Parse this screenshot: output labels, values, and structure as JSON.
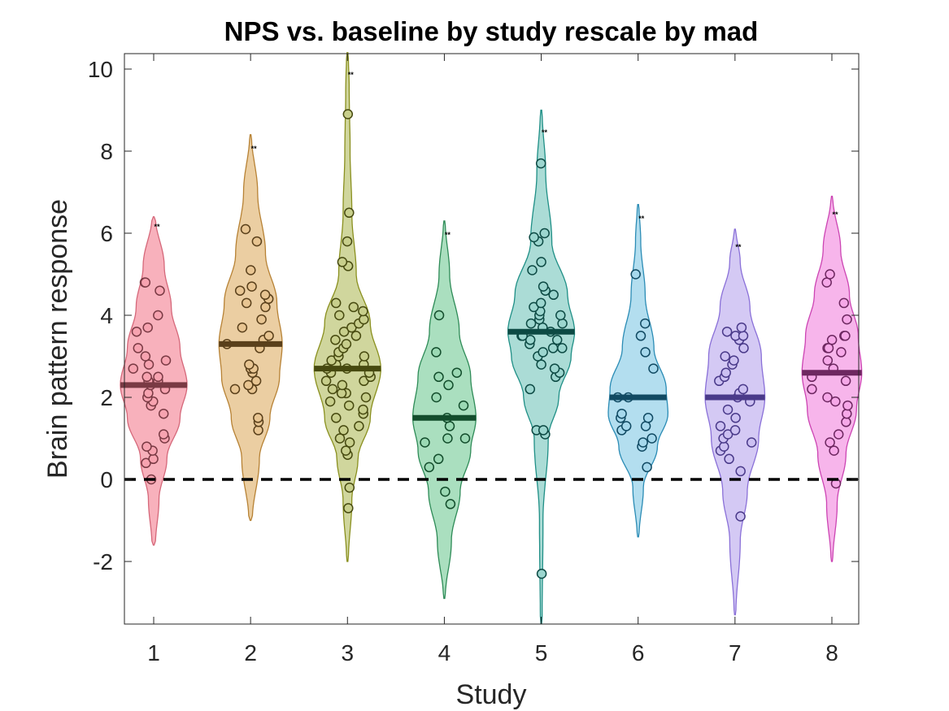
{
  "chart_data": {
    "type": "violin",
    "title": "NPS vs. baseline by study rescale by mad",
    "xlabel": "Study",
    "ylabel": "Brain pattern response",
    "categories": [
      "1",
      "2",
      "3",
      "4",
      "5",
      "6",
      "7",
      "8"
    ],
    "yticks": [
      "-2",
      "0",
      "2",
      "4",
      "6",
      "8",
      "10"
    ],
    "ylim": [
      -3.5,
      10.4
    ],
    "reference_line": 0,
    "significance_label": "**",
    "grid": false,
    "series": [
      {
        "color": "#f7a3b0",
        "edge": "#d5687a",
        "median_color": "#7a3a44",
        "median": 2.3,
        "range": [
          -1.6,
          6.4
        ],
        "sig_y": 6.1,
        "violin": [
          [
            -1.6,
            0.02
          ],
          [
            -0.5,
            0.06
          ],
          [
            0.5,
            0.15
          ],
          [
            1.5,
            0.3
          ],
          [
            2.3,
            0.38
          ],
          [
            3.2,
            0.3
          ],
          [
            4.2,
            0.2
          ],
          [
            5.2,
            0.12
          ],
          [
            6.4,
            0.02
          ]
        ],
        "points": [
          0.4,
          0.5,
          0.0,
          0.7,
          0.8,
          1.0,
          1.1,
          1.6,
          1.8,
          1.9,
          2.0,
          2.1,
          2.2,
          2.3,
          2.4,
          2.4,
          2.5,
          2.5,
          2.7,
          2.8,
          2.9,
          3.0,
          3.2,
          3.6,
          3.7,
          4.0,
          4.6,
          4.8,
          4.8
        ]
      },
      {
        "color": "#e8c592",
        "edge": "#b78235",
        "median_color": "#5a401b",
        "median": 3.3,
        "range": [
          -1.0,
          8.4
        ],
        "sig_y": 8.0,
        "violin": [
          [
            -1.0,
            0.02
          ],
          [
            0.5,
            0.1
          ],
          [
            1.5,
            0.22
          ],
          [
            2.5,
            0.33
          ],
          [
            3.3,
            0.36
          ],
          [
            4.3,
            0.3
          ],
          [
            5.5,
            0.17
          ],
          [
            7.0,
            0.08
          ],
          [
            8.4,
            0.01
          ]
        ],
        "points": [
          1.2,
          1.4,
          1.5,
          2.2,
          2.2,
          2.3,
          2.4,
          2.6,
          2.7,
          2.7,
          2.8,
          3.2,
          3.3,
          3.4,
          3.5,
          3.7,
          3.9,
          4.2,
          4.3,
          4.4,
          4.5,
          4.6,
          4.7,
          5.1,
          5.8,
          6.1
        ]
      },
      {
        "color": "#c8cf8c",
        "edge": "#8a901f",
        "median_color": "#474a10",
        "median": 2.7,
        "range": [
          -2.0,
          10.4
        ],
        "sig_y": 9.8,
        "violin": [
          [
            -2.0,
            0.01
          ],
          [
            -0.5,
            0.05
          ],
          [
            0.5,
            0.12
          ],
          [
            1.5,
            0.26
          ],
          [
            2.7,
            0.38
          ],
          [
            3.8,
            0.26
          ],
          [
            5.0,
            0.1
          ],
          [
            6.5,
            0.05
          ],
          [
            8.0,
            0.03
          ],
          [
            9.5,
            0.02
          ],
          [
            10.4,
            0.01
          ]
        ],
        "points": [
          -0.7,
          -0.2,
          0.6,
          0.7,
          0.9,
          1.0,
          1.2,
          1.3,
          1.5,
          1.6,
          1.7,
          1.8,
          1.9,
          2.0,
          2.1,
          2.1,
          2.2,
          2.3,
          2.4,
          2.4,
          2.5,
          2.6,
          2.6,
          2.7,
          2.7,
          2.8,
          2.8,
          2.9,
          3.0,
          3.0,
          3.1,
          3.2,
          3.3,
          3.4,
          3.5,
          3.6,
          3.7,
          3.8,
          3.9,
          4.0,
          4.1,
          4.2,
          4.3,
          5.2,
          5.3,
          5.8,
          6.5,
          8.9
        ]
      },
      {
        "color": "#9bd9b4",
        "edge": "#2e8b57",
        "median_color": "#134d2c",
        "median": 1.5,
        "range": [
          -2.9,
          6.3
        ],
        "sig_y": 5.9,
        "violin": [
          [
            -2.9,
            0.01
          ],
          [
            -1.5,
            0.08
          ],
          [
            -0.3,
            0.18
          ],
          [
            0.7,
            0.3
          ],
          [
            1.5,
            0.36
          ],
          [
            2.5,
            0.3
          ],
          [
            3.6,
            0.17
          ],
          [
            5.0,
            0.06
          ],
          [
            6.3,
            0.01
          ]
        ],
        "points": [
          -0.6,
          -0.3,
          0.3,
          0.5,
          0.9,
          1.0,
          1.0,
          1.3,
          1.5,
          1.8,
          2.0,
          2.3,
          2.5,
          2.6,
          3.1,
          4.0
        ]
      },
      {
        "color": "#9cd6cf",
        "edge": "#1f8f86",
        "median_color": "#0d4a44",
        "median": 3.6,
        "range": [
          -3.5,
          9.0
        ],
        "sig_y": 8.4,
        "violin": [
          [
            -3.5,
            0.01
          ],
          [
            -1.0,
            0.02
          ],
          [
            1.0,
            0.08
          ],
          [
            2.0,
            0.2
          ],
          [
            3.0,
            0.34
          ],
          [
            3.6,
            0.38
          ],
          [
            4.5,
            0.3
          ],
          [
            5.8,
            0.12
          ],
          [
            7.5,
            0.05
          ],
          [
            9.0,
            0.01
          ]
        ],
        "points": [
          -2.3,
          1.1,
          1.2,
          1.2,
          2.2,
          2.5,
          2.6,
          2.7,
          2.8,
          3.0,
          3.1,
          3.2,
          3.2,
          3.3,
          3.4,
          3.4,
          3.5,
          3.5,
          3.6,
          3.7,
          3.8,
          3.8,
          3.9,
          4.0,
          4.0,
          4.1,
          4.2,
          4.3,
          4.5,
          4.6,
          4.7,
          5.1,
          5.3,
          5.8,
          5.9,
          6.0,
          7.7
        ]
      },
      {
        "color": "#a6d8ec",
        "edge": "#2b8cb5",
        "median_color": "#114a63",
        "median": 2.0,
        "range": [
          -1.4,
          6.7
        ],
        "sig_y": 6.3,
        "violin": [
          [
            -1.4,
            0.01
          ],
          [
            -0.2,
            0.06
          ],
          [
            0.8,
            0.22
          ],
          [
            1.6,
            0.34
          ],
          [
            2.2,
            0.32
          ],
          [
            3.2,
            0.18
          ],
          [
            4.5,
            0.08
          ],
          [
            5.8,
            0.03
          ],
          [
            6.7,
            0.01
          ]
        ],
        "points": [
          0.3,
          0.8,
          0.9,
          1.0,
          1.2,
          1.3,
          1.3,
          1.5,
          1.5,
          1.6,
          2.0,
          2.0,
          2.7,
          3.1,
          3.5,
          3.8,
          5.0
        ]
      },
      {
        "color": "#ccc0f2",
        "edge": "#8a70d8",
        "median_color": "#4a3a8a",
        "median": 2.0,
        "range": [
          -3.3,
          6.1
        ],
        "sig_y": 5.6,
        "violin": [
          [
            -3.3,
            0.01
          ],
          [
            -1.5,
            0.06
          ],
          [
            -0.3,
            0.14
          ],
          [
            1.0,
            0.27
          ],
          [
            2.0,
            0.34
          ],
          [
            3.0,
            0.3
          ],
          [
            4.2,
            0.17
          ],
          [
            5.3,
            0.06
          ],
          [
            6.1,
            0.01
          ]
        ],
        "points": [
          -0.9,
          0.2,
          0.5,
          0.7,
          0.8,
          0.9,
          1.0,
          1.1,
          1.2,
          1.3,
          1.5,
          1.7,
          1.9,
          2.0,
          2.1,
          2.2,
          2.4,
          2.5,
          2.6,
          2.8,
          2.9,
          3.0,
          3.2,
          3.4,
          3.5,
          3.5,
          3.6,
          3.7
        ]
      },
      {
        "color": "#f6a8e8",
        "edge": "#cc45b3",
        "median_color": "#6d2760",
        "median": 2.6,
        "range": [
          -2.0,
          6.9
        ],
        "sig_y": 6.4,
        "violin": [
          [
            -2.0,
            0.01
          ],
          [
            -0.6,
            0.06
          ],
          [
            0.6,
            0.16
          ],
          [
            1.7,
            0.28
          ],
          [
            2.6,
            0.34
          ],
          [
            3.5,
            0.3
          ],
          [
            4.5,
            0.2
          ],
          [
            5.6,
            0.1
          ],
          [
            6.9,
            0.01
          ]
        ],
        "points": [
          -0.1,
          0.7,
          0.9,
          1.1,
          1.4,
          1.6,
          1.8,
          1.9,
          2.0,
          2.2,
          2.4,
          2.5,
          2.7,
          2.9,
          3.1,
          3.2,
          3.2,
          3.4,
          3.5,
          3.5,
          3.9,
          4.3,
          4.8,
          5.0
        ]
      }
    ]
  }
}
